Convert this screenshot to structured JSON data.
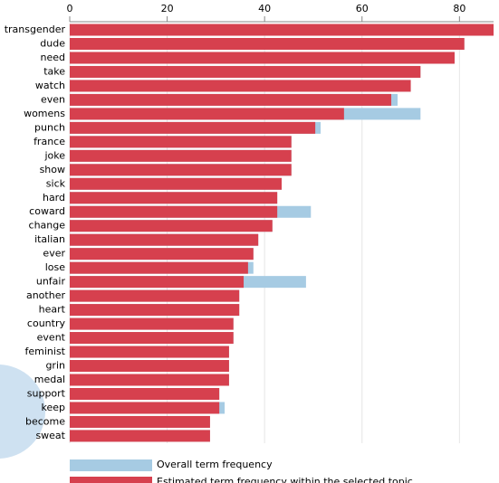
{
  "chart_data": {
    "type": "bar",
    "orientation": "horizontal",
    "categories": [
      "transgender",
      "dude",
      "need",
      "take",
      "watch",
      "even",
      "womens",
      "punch",
      "france",
      "joke",
      "show",
      "sick",
      "hard",
      "coward",
      "change",
      "italian",
      "ever",
      "lose",
      "unfair",
      "another",
      "heart",
      "country",
      "event",
      "feminist",
      "grin",
      "medal",
      "support",
      "keep",
      "become",
      "sweat"
    ],
    "series": [
      {
        "name": "Overall term frequency",
        "color": "#a6cbe3",
        "values": [
          87,
          81,
          79,
          72,
          70,
          67.3,
          72,
          51.5,
          45.5,
          45.5,
          45.5,
          43.5,
          42.6,
          49.5,
          41.6,
          38.7,
          37.7,
          37.7,
          48.5,
          34.8,
          34.8,
          33.6,
          33.6,
          32.7,
          32.7,
          32.7,
          30.7,
          31.8,
          28.8,
          28.8
        ]
      },
      {
        "name": "Estimated term frequency within the selected topic",
        "color": "#d6404e",
        "values": [
          87,
          81,
          79,
          72,
          70,
          66,
          56.3,
          50.4,
          45.5,
          45.5,
          45.5,
          43.5,
          42.6,
          42.6,
          41.6,
          38.7,
          37.7,
          36.6,
          35.7,
          34.8,
          34.8,
          33.6,
          33.6,
          32.7,
          32.7,
          32.7,
          30.7,
          30.7,
          28.8,
          28.8
        ]
      }
    ],
    "xlim": [
      0,
      87
    ],
    "xticks": [
      0,
      20,
      40,
      60,
      80
    ],
    "grid": true
  }
}
